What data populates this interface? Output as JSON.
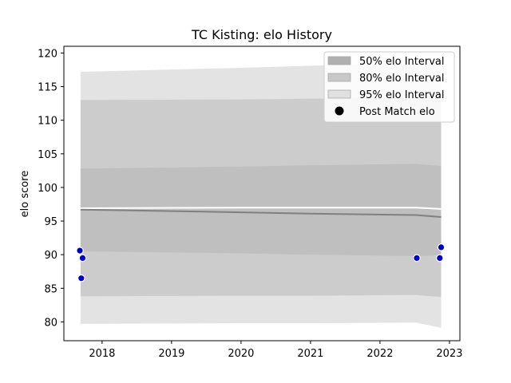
{
  "chart_data": {
    "type": "area",
    "title": "TC Kisting: elo History",
    "xlabel": "",
    "ylabel": "elo score",
    "xlim": [
      2017.45,
      2023.15
    ],
    "ylim": [
      77.2,
      121.0
    ],
    "xticks": [
      2018,
      2019,
      2020,
      2021,
      2022,
      2023
    ],
    "yticks": [
      80,
      85,
      90,
      95,
      100,
      105,
      110,
      115,
      120
    ],
    "grid": false,
    "legend_position": "top-right",
    "band_x": [
      2017.69,
      2020,
      2021,
      2022.52,
      2022.88
    ],
    "series": [
      {
        "name": "95% elo Interval",
        "color": "#e3e3e3",
        "upper": [
          117.2,
          117.8,
          118.1,
          118.5,
          118.4
        ],
        "lower": [
          79.7,
          79.8,
          79.8,
          79.9,
          79.1
        ]
      },
      {
        "name": "80% elo Interval",
        "color": "#cccccc",
        "upper": [
          113.0,
          113.1,
          113.2,
          113.3,
          113.1
        ],
        "lower": [
          83.8,
          83.9,
          83.9,
          84.0,
          83.7
        ]
      },
      {
        "name": "50% elo Interval",
        "color": "#bfbfbf",
        "upper": [
          102.8,
          103.1,
          103.3,
          103.5,
          103.2
        ],
        "lower": [
          90.5,
          90.2,
          90.0,
          89.8,
          89.9
        ]
      }
    ],
    "mean_line": {
      "color": "#808080",
      "y": [
        96.7,
        96.3,
        96.1,
        95.9,
        95.6
      ]
    },
    "upper_line": {
      "color": "#ffffff",
      "y": [
        96.9,
        97.0,
        97.0,
        97.0,
        96.8
      ]
    },
    "points": {
      "name": "Post Match elo",
      "fill": "#0000cc",
      "data": [
        {
          "x": 2017.68,
          "y": 90.6
        },
        {
          "x": 2017.72,
          "y": 89.5
        },
        {
          "x": 2017.7,
          "y": 86.5
        },
        {
          "x": 2022.53,
          "y": 89.5
        },
        {
          "x": 2022.86,
          "y": 89.5
        },
        {
          "x": 2022.88,
          "y": 91.1
        }
      ]
    },
    "legend": [
      {
        "label": "50% elo Interval",
        "kind": "patch",
        "color": "#b0b0b0"
      },
      {
        "label": "80% elo Interval",
        "kind": "patch",
        "color": "#c8c8c8"
      },
      {
        "label": "95% elo Interval",
        "kind": "patch",
        "color": "#e0e0e0"
      },
      {
        "label": "Post Match elo",
        "kind": "marker",
        "color": "#000000"
      }
    ]
  }
}
